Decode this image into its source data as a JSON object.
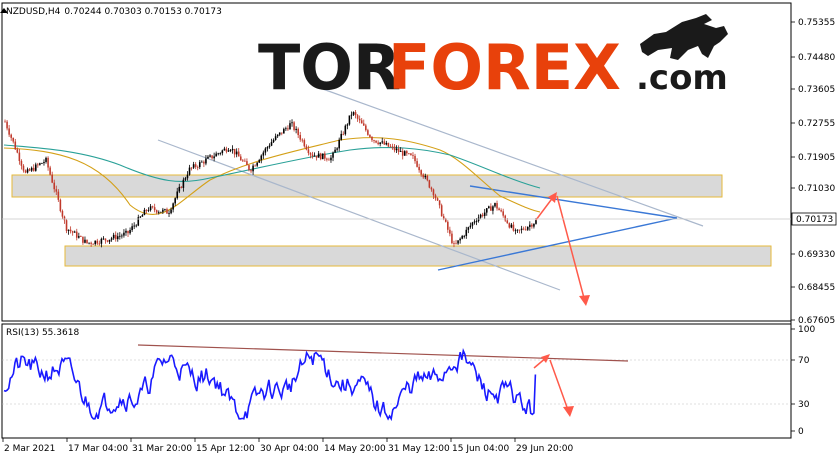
{
  "header": {
    "symbol": "NZDUSD,H4",
    "ohlc": "0.70244 0.70303 0.70153 0.70173"
  },
  "logo": {
    "part1": "TOR",
    "part2": "FOREX",
    "part3": ".com",
    "emblem": "bull-icon"
  },
  "price_axis": {
    "ticks": [
      "0.75355",
      "0.74480",
      "0.73605",
      "0.72755",
      "0.71905",
      "0.71030",
      "0.69330",
      "0.68455",
      "0.67605"
    ],
    "current_price": "0.70173"
  },
  "rsi_panel": {
    "label": "RSI(13) 55.3618",
    "ticks": [
      "100",
      "70",
      "30",
      "0"
    ]
  },
  "time_axis": {
    "labels": [
      "2 Mar 2021",
      "17 Mar 04:00",
      "31 Mar 20:00",
      "15 Apr 12:00",
      "30 Apr 04:00",
      "14 May 20:00",
      "31 May 12:00",
      "15 Jun 04:00",
      "29 Jun 20:00"
    ]
  },
  "colors": {
    "bull_candle": "#000000",
    "bear_candle": "#c0392b",
    "ma_fast": "#d4a017",
    "ma_slow": "#2aa198",
    "rsi_line": "#1a1aff",
    "zone_fill": "#d9d9d9",
    "zone_border": "#e6b93a",
    "trend_blue": "#3a78d6",
    "channel_gray": "#a9b7cc",
    "arrow_red": "#ff5a4a",
    "rsi_trend": "#a0524d"
  },
  "chart_data": {
    "type": "candlestick",
    "symbol": "NZDUSD",
    "timeframe": "H4",
    "close_path": [
      [
        "2 Mar 2021",
        0.7275
      ],
      [
        "8 Mar",
        0.714
      ],
      [
        "12 Mar",
        0.7175
      ],
      [
        "17 Mar 04:00",
        0.7
      ],
      [
        "22 Mar",
        0.696
      ],
      [
        "26 Mar",
        0.697
      ],
      [
        "31 Mar 20:00",
        0.6985
      ],
      [
        "5 Apr",
        0.705
      ],
      [
        "9 Apr",
        0.704
      ],
      [
        "15 Apr 12:00",
        0.715
      ],
      [
        "20 Apr",
        0.718
      ],
      [
        "26 Apr",
        0.721
      ],
      [
        "30 Apr 04:00",
        0.715
      ],
      [
        "5 May",
        0.722
      ],
      [
        "10 May",
        0.727
      ],
      [
        "14 May 20:00",
        0.719
      ],
      [
        "20 May",
        0.718
      ],
      [
        "25 May",
        0.73
      ],
      [
        "31 May 12:00",
        0.723
      ],
      [
        "4 Jun",
        0.7205
      ],
      [
        "10 Jun",
        0.718
      ],
      [
        "15 Jun 04:00",
        0.709
      ],
      [
        "18 Jun",
        0.695
      ],
      [
        "23 Jun",
        0.702
      ],
      [
        "25 Jun",
        0.706
      ],
      [
        "29 Jun 20:00",
        0.6985
      ],
      [
        "2 Jul",
        0.7017
      ]
    ],
    "zones": [
      {
        "from": 0.709,
        "to": 0.7115
      },
      {
        "from": 0.6925,
        "to": 0.6955
      }
    ],
    "rsi_period": 13,
    "rsi_last": 55.3618,
    "ylim_price": [
      0.67605,
      0.758
    ],
    "ylim_rsi": [
      0,
      100
    ]
  }
}
